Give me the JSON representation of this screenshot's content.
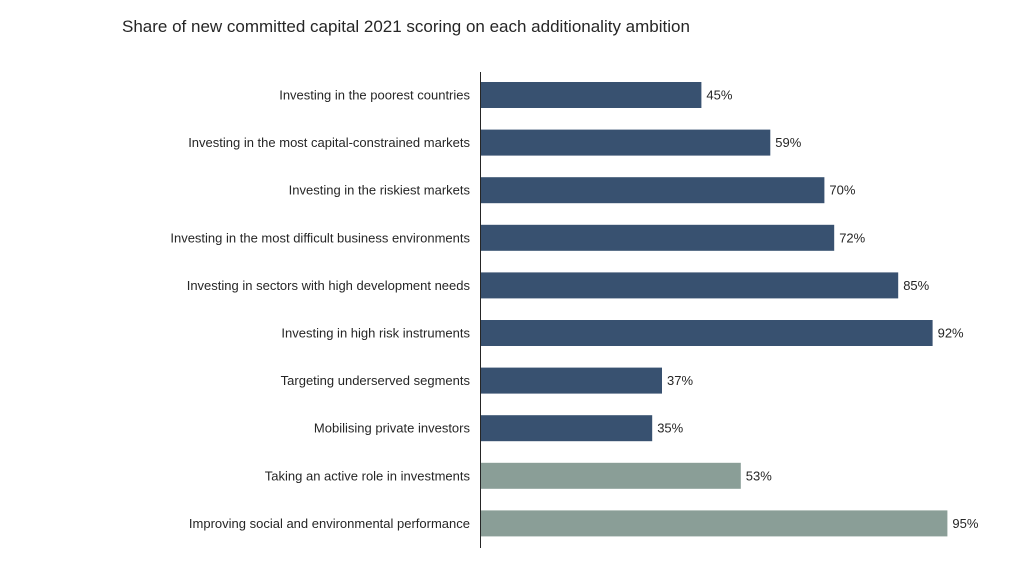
{
  "chart_data": {
    "type": "bar",
    "orientation": "horizontal",
    "title": "Share of new committed capital 2021 scoring on each additionality ambition",
    "xlabel": "",
    "ylabel": "",
    "xlim": [
      0,
      100
    ],
    "grid": false,
    "legend": "none",
    "value_suffix": "%",
    "categories": [
      "Investing in the poorest countries",
      "Investing in the most capital-constrained markets",
      "Investing in the riskiest markets",
      "Investing in the most difficult business environments",
      "Investing in sectors with high development needs",
      "Investing in high risk instruments",
      "Targeting underserved segments",
      "Mobilising private investors",
      "Taking an active role in investments",
      "Improving social and environmental performance"
    ],
    "values": [
      45,
      59,
      70,
      72,
      85,
      92,
      37,
      35,
      53,
      95
    ],
    "bar_colors": [
      "#385170",
      "#385170",
      "#385170",
      "#385170",
      "#385170",
      "#385170",
      "#385170",
      "#385170",
      "#8a9e97",
      "#8a9e97"
    ],
    "axis_color": "#262626"
  }
}
